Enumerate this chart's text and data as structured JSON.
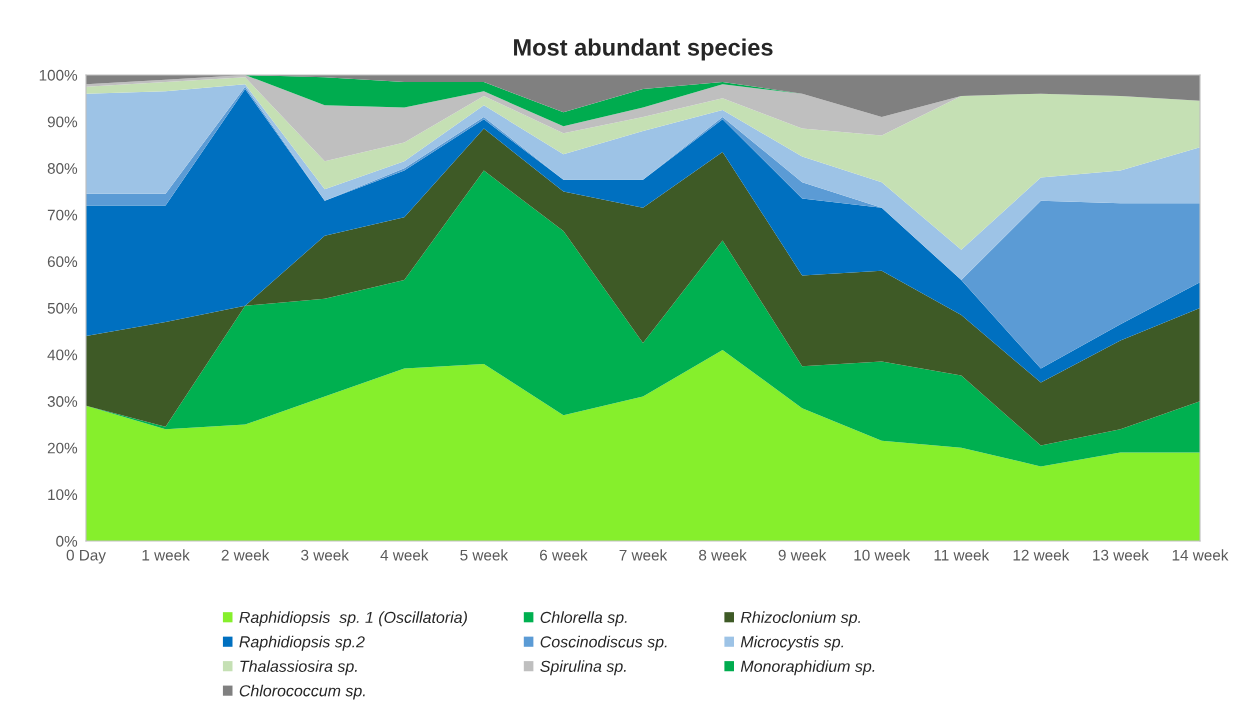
{
  "chart_data": {
    "type": "area",
    "stacked": true,
    "title": "Most abundant species",
    "categories": [
      "0 Day",
      "1 week",
      "2 week",
      "3 week",
      "4 week",
      "5 week",
      "6 week",
      "7 week",
      "8 week",
      "9 week",
      "10 week",
      "11 week",
      "12 week",
      "13 week",
      "14 week"
    ],
    "ylim": [
      0,
      100
    ],
    "yticks": [
      {
        "value": 0,
        "label": "0%"
      },
      {
        "value": 10,
        "label": "10%"
      },
      {
        "value": 20,
        "label": "20%"
      },
      {
        "value": 30,
        "label": "30%"
      },
      {
        "value": 40,
        "label": "40%"
      },
      {
        "value": 50,
        "label": "50%"
      },
      {
        "value": 60,
        "label": "60%"
      },
      {
        "value": 70,
        "label": "70%"
      },
      {
        "value": 80,
        "label": "80%"
      },
      {
        "value": 90,
        "label": "90%"
      },
      {
        "value": 100,
        "label": "100%"
      }
    ],
    "grid": false,
    "legend": "bottom",
    "series": [
      {
        "name": "Raphidiopsis  sp. 1 (Oscillatoria)",
        "color": "#86ef2c",
        "values": [
          29,
          24,
          25,
          31,
          37,
          38,
          27,
          31,
          41,
          28.5,
          21.5,
          20,
          16,
          19,
          19
        ]
      },
      {
        "name": "Chlorella sp.",
        "color": "#00b050",
        "values": [
          0,
          0.5,
          25.5,
          21,
          19,
          41.5,
          39.5,
          11.5,
          23.5,
          9,
          17,
          15.5,
          4.5,
          5,
          11
        ]
      },
      {
        "name": "Rhizoclonium sp.",
        "color": "#3e5a26",
        "values": [
          15,
          22.5,
          0,
          13.5,
          13.5,
          9,
          8.5,
          29,
          19,
          19.5,
          19.5,
          13,
          13.5,
          19,
          20
        ]
      },
      {
        "name": "Raphidiopsis sp.2",
        "color": "#0070c0",
        "values": [
          28,
          25,
          46.5,
          7.5,
          10,
          2,
          2.5,
          6,
          7,
          16.5,
          13.5,
          7.5,
          3,
          3.5,
          5.5
        ]
      },
      {
        "name": "Coscinodiscus sp.",
        "color": "#5b9bd5",
        "values": [
          2.5,
          2.5,
          0.5,
          0,
          0.5,
          0.5,
          0,
          0,
          0.5,
          3.5,
          0,
          0,
          36,
          26,
          17
        ]
      },
      {
        "name": "Microcystis sp.",
        "color": "#9dc3e6",
        "values": [
          21.5,
          22,
          0.5,
          2.5,
          1.5,
          2.5,
          5.5,
          10.5,
          1.5,
          5.5,
          5.5,
          6.5,
          5,
          7,
          12
        ]
      },
      {
        "name": "Thalassiosira sp.",
        "color": "#c5e0b4",
        "values": [
          1.5,
          2,
          1.5,
          6,
          4,
          2,
          4.5,
          3,
          2.5,
          6,
          10,
          33,
          18,
          16,
          10
        ]
      },
      {
        "name": "Spirulina sp.",
        "color": "#bfbfbf",
        "values": [
          0.5,
          0.5,
          0.5,
          12,
          7.5,
          1,
          1.5,
          2,
          3,
          7.5,
          4,
          0,
          0,
          0,
          0
        ]
      },
      {
        "name": "Monoraphidium sp.",
        "color": "#00ac4f",
        "values": [
          0,
          0,
          0,
          6,
          5.5,
          2,
          3,
          4,
          0.5,
          0,
          0,
          0,
          0,
          0,
          0
        ]
      },
      {
        "name": "Chlorococcum sp.",
        "color": "#808080",
        "values": [
          2,
          1,
          0,
          0.5,
          1.5,
          1.5,
          8,
          3,
          1.5,
          4,
          9,
          4.5,
          4,
          4.5,
          5.5
        ]
      }
    ]
  }
}
